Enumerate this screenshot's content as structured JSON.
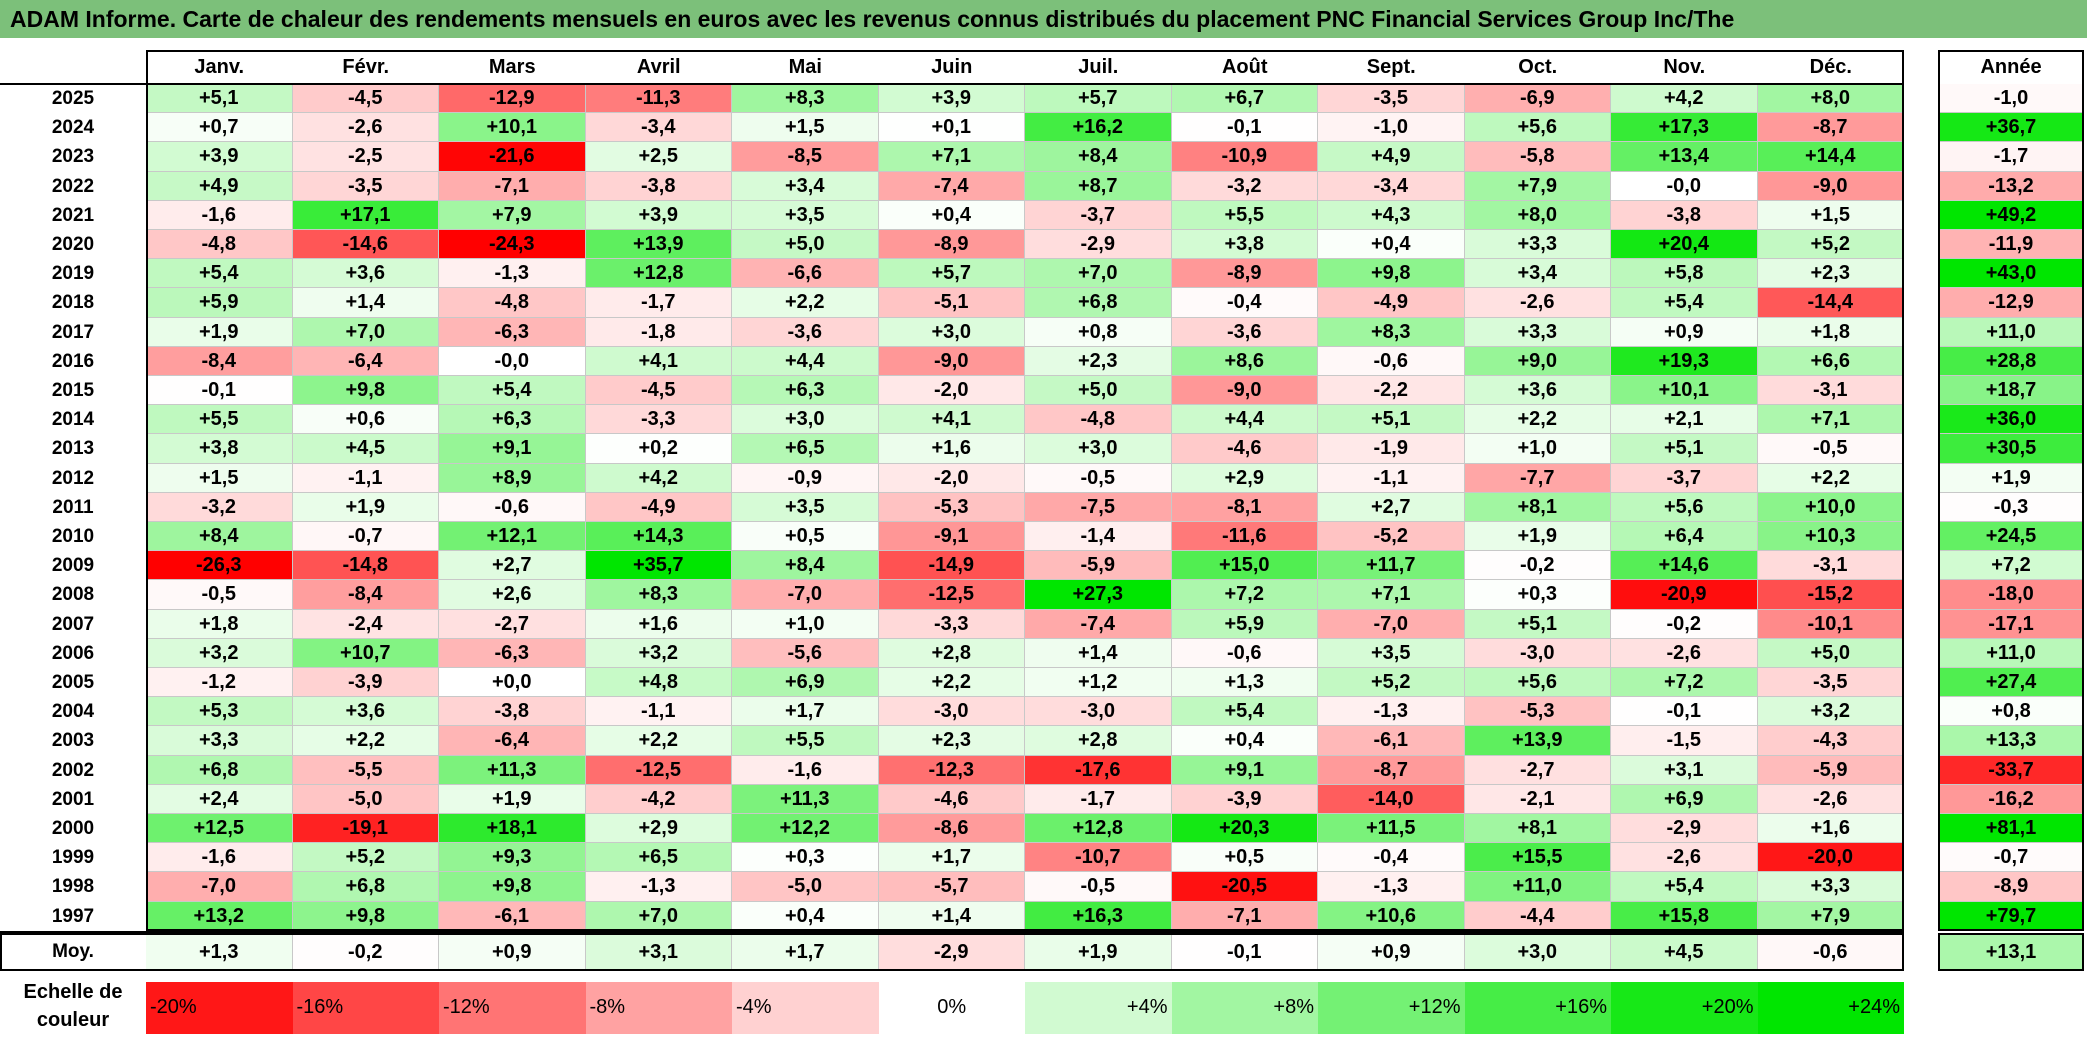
{
  "title": "ADAM Informe. Carte de chaleur des rendements mensuels en euros avec les revenus connus distribués du placement PNC Financial Services Group Inc/The",
  "chart_data": {
    "type": "heatmap",
    "months": [
      "Janv.",
      "Févr.",
      "Mars",
      "Avril",
      "Mai",
      "Juin",
      "Juil.",
      "Août",
      "Sept.",
      "Oct.",
      "Nov.",
      "Déc."
    ],
    "year_header": "Année",
    "rows": [
      {
        "year": "2025",
        "values": [
          "+5,1",
          "-4,5",
          "-12,9",
          "-11,3",
          "+8,3",
          "+3,9",
          "+5,7",
          "+6,7",
          "-3,5",
          "-6,9",
          "+4,2",
          "+8,0"
        ],
        "annual": "-1,0"
      },
      {
        "year": "2024",
        "values": [
          "+0,7",
          "-2,6",
          "+10,1",
          "-3,4",
          "+1,5",
          "+0,1",
          "+16,2",
          "-0,1",
          "-1,0",
          "+5,6",
          "+17,3",
          "-8,7"
        ],
        "annual": "+36,7"
      },
      {
        "year": "2023",
        "values": [
          "+3,9",
          "-2,5",
          "-21,6",
          "+2,5",
          "-8,5",
          "+7,1",
          "+8,4",
          "-10,9",
          "+4,9",
          "-5,8",
          "+13,4",
          "+14,4"
        ],
        "annual": "-1,7"
      },
      {
        "year": "2022",
        "values": [
          "+4,9",
          "-3,5",
          "-7,1",
          "-3,8",
          "+3,4",
          "-7,4",
          "+8,7",
          "-3,2",
          "-3,4",
          "+7,9",
          "-0,0",
          "-9,0"
        ],
        "annual": "-13,2"
      },
      {
        "year": "2021",
        "values": [
          "-1,6",
          "+17,1",
          "+7,9",
          "+3,9",
          "+3,5",
          "+0,4",
          "-3,7",
          "+5,5",
          "+4,3",
          "+8,0",
          "-3,8",
          "+1,5"
        ],
        "annual": "+49,2"
      },
      {
        "year": "2020",
        "values": [
          "-4,8",
          "-14,6",
          "-24,3",
          "+13,9",
          "+5,0",
          "-8,9",
          "-2,9",
          "+3,8",
          "+0,4",
          "+3,3",
          "+20,4",
          "+5,2"
        ],
        "annual": "-11,9"
      },
      {
        "year": "2019",
        "values": [
          "+5,4",
          "+3,6",
          "-1,3",
          "+12,8",
          "-6,6",
          "+5,7",
          "+7,0",
          "-8,9",
          "+9,8",
          "+3,4",
          "+5,8",
          "+2,3"
        ],
        "annual": "+43,0"
      },
      {
        "year": "2018",
        "values": [
          "+5,9",
          "+1,4",
          "-4,8",
          "-1,7",
          "+2,2",
          "-5,1",
          "+6,8",
          "-0,4",
          "-4,9",
          "-2,6",
          "+5,4",
          "-14,4"
        ],
        "annual": "-12,9"
      },
      {
        "year": "2017",
        "values": [
          "+1,9",
          "+7,0",
          "-6,3",
          "-1,8",
          "-3,6",
          "+3,0",
          "+0,8",
          "-3,6",
          "+8,3",
          "+3,3",
          "+0,9",
          "+1,8"
        ],
        "annual": "+11,0"
      },
      {
        "year": "2016",
        "values": [
          "-8,4",
          "-6,4",
          "-0,0",
          "+4,1",
          "+4,4",
          "-9,0",
          "+2,3",
          "+8,6",
          "-0,6",
          "+9,0",
          "+19,3",
          "+6,6"
        ],
        "annual": "+28,8"
      },
      {
        "year": "2015",
        "values": [
          "-0,1",
          "+9,8",
          "+5,4",
          "-4,5",
          "+6,3",
          "-2,0",
          "+5,0",
          "-9,0",
          "-2,2",
          "+3,6",
          "+10,1",
          "-3,1"
        ],
        "annual": "+18,7"
      },
      {
        "year": "2014",
        "values": [
          "+5,5",
          "+0,6",
          "+6,3",
          "-3,3",
          "+3,0",
          "+4,1",
          "-4,8",
          "+4,4",
          "+5,1",
          "+2,2",
          "+2,1",
          "+7,1"
        ],
        "annual": "+36,0"
      },
      {
        "year": "2013",
        "values": [
          "+3,8",
          "+4,5",
          "+9,1",
          "+0,2",
          "+6,5",
          "+1,6",
          "+3,0",
          "-4,6",
          "-1,9",
          "+1,0",
          "+5,1",
          "-0,5"
        ],
        "annual": "+30,5"
      },
      {
        "year": "2012",
        "values": [
          "+1,5",
          "-1,1",
          "+8,9",
          "+4,2",
          "-0,9",
          "-2,0",
          "-0,5",
          "+2,9",
          "-1,1",
          "-7,7",
          "-3,7",
          "+2,2"
        ],
        "annual": "+1,9"
      },
      {
        "year": "2011",
        "values": [
          "-3,2",
          "+1,9",
          "-0,6",
          "-4,9",
          "+3,5",
          "-5,3",
          "-7,5",
          "-8,1",
          "+2,7",
          "+8,1",
          "+5,6",
          "+10,0"
        ],
        "annual": "-0,3"
      },
      {
        "year": "2010",
        "values": [
          "+8,4",
          "-0,7",
          "+12,1",
          "+14,3",
          "+0,5",
          "-9,1",
          "-1,4",
          "-11,6",
          "-5,2",
          "+1,9",
          "+6,4",
          "+10,3"
        ],
        "annual": "+24,5"
      },
      {
        "year": "2009",
        "values": [
          "-26,3",
          "-14,8",
          "+2,7",
          "+35,7",
          "+8,4",
          "-14,9",
          "-5,9",
          "+15,0",
          "+11,7",
          "-0,2",
          "+14,6",
          "-3,1"
        ],
        "annual": "+7,2"
      },
      {
        "year": "2008",
        "values": [
          "-0,5",
          "-8,4",
          "+2,6",
          "+8,3",
          "-7,0",
          "-12,5",
          "+27,3",
          "+7,2",
          "+7,1",
          "+0,3",
          "-20,9",
          "-15,2"
        ],
        "annual": "-18,0"
      },
      {
        "year": "2007",
        "values": [
          "+1,8",
          "-2,4",
          "-2,7",
          "+1,6",
          "+1,0",
          "-3,3",
          "-7,4",
          "+5,9",
          "-7,0",
          "+5,1",
          "-0,2",
          "-10,1"
        ],
        "annual": "-17,1"
      },
      {
        "year": "2006",
        "values": [
          "+3,2",
          "+10,7",
          "-6,3",
          "+3,2",
          "-5,6",
          "+2,8",
          "+1,4",
          "-0,6",
          "+3,5",
          "-3,0",
          "-2,6",
          "+5,0"
        ],
        "annual": "+11,0"
      },
      {
        "year": "2005",
        "values": [
          "-1,2",
          "-3,9",
          "+0,0",
          "+4,8",
          "+6,9",
          "+2,2",
          "+1,2",
          "+1,3",
          "+5,2",
          "+5,6",
          "+7,2",
          "-3,5"
        ],
        "annual": "+27,4"
      },
      {
        "year": "2004",
        "values": [
          "+5,3",
          "+3,6",
          "-3,8",
          "-1,1",
          "+1,7",
          "-3,0",
          "-3,0",
          "+5,4",
          "-1,3",
          "-5,3",
          "-0,1",
          "+3,2"
        ],
        "annual": "+0,8"
      },
      {
        "year": "2003",
        "values": [
          "+3,3",
          "+2,2",
          "-6,4",
          "+2,2",
          "+5,5",
          "+2,3",
          "+2,8",
          "+0,4",
          "-6,1",
          "+13,9",
          "-1,5",
          "-4,3"
        ],
        "annual": "+13,3"
      },
      {
        "year": "2002",
        "values": [
          "+6,8",
          "-5,5",
          "+11,3",
          "-12,5",
          "-1,6",
          "-12,3",
          "-17,6",
          "+9,1",
          "-8,7",
          "-2,7",
          "+3,1",
          "-5,9"
        ],
        "annual": "-33,7"
      },
      {
        "year": "2001",
        "values": [
          "+2,4",
          "-5,0",
          "+1,9",
          "-4,2",
          "+11,3",
          "-4,6",
          "-1,7",
          "-3,9",
          "-14,0",
          "-2,1",
          "+6,9",
          "-2,6"
        ],
        "annual": "-16,2"
      },
      {
        "year": "2000",
        "values": [
          "+12,5",
          "-19,1",
          "+18,1",
          "+2,9",
          "+12,2",
          "-8,6",
          "+12,8",
          "+20,3",
          "+11,5",
          "+8,1",
          "-2,9",
          "+1,6"
        ],
        "annual": "+81,1"
      },
      {
        "year": "1999",
        "values": [
          "-1,6",
          "+5,2",
          "+9,3",
          "+6,5",
          "+0,3",
          "+1,7",
          "-10,7",
          "+0,5",
          "-0,4",
          "+15,5",
          "-2,6",
          "-20,0"
        ],
        "annual": "-0,7"
      },
      {
        "year": "1998",
        "values": [
          "-7,0",
          "+6,8",
          "+9,8",
          "-1,3",
          "-5,0",
          "-5,7",
          "-0,5",
          "-20,5",
          "-1,3",
          "+11,0",
          "+5,4",
          "+3,3"
        ],
        "annual": "-8,9"
      },
      {
        "year": "1997",
        "values": [
          "+13,2",
          "+9,8",
          "-6,1",
          "+7,0",
          "+0,4",
          "+1,4",
          "+16,3",
          "-7,1",
          "+10,6",
          "-4,4",
          "+15,8",
          "+7,9"
        ],
        "annual": "+79,7"
      }
    ],
    "average": {
      "label": "Moy.",
      "values": [
        "+1,3",
        "-0,2",
        "+0,9",
        "+3,1",
        "+1,7",
        "-2,9",
        "+1,9",
        "-0,1",
        "+0,9",
        "+3,0",
        "+4,5",
        "-0,6"
      ],
      "annual": "+13,1"
    },
    "scale": {
      "label": "Echelle de couleur",
      "stops": [
        "-20%",
        "-16%",
        "-12%",
        "-8%",
        "-4%",
        "0%",
        "+4%",
        "+8%",
        "+12%",
        "+16%",
        "+20%",
        "+24%"
      ]
    },
    "colors": {
      "negative": "#ff0000",
      "neutral": "#ffffff",
      "positive": "#00e600",
      "title_bar": "#7cc07a"
    }
  }
}
